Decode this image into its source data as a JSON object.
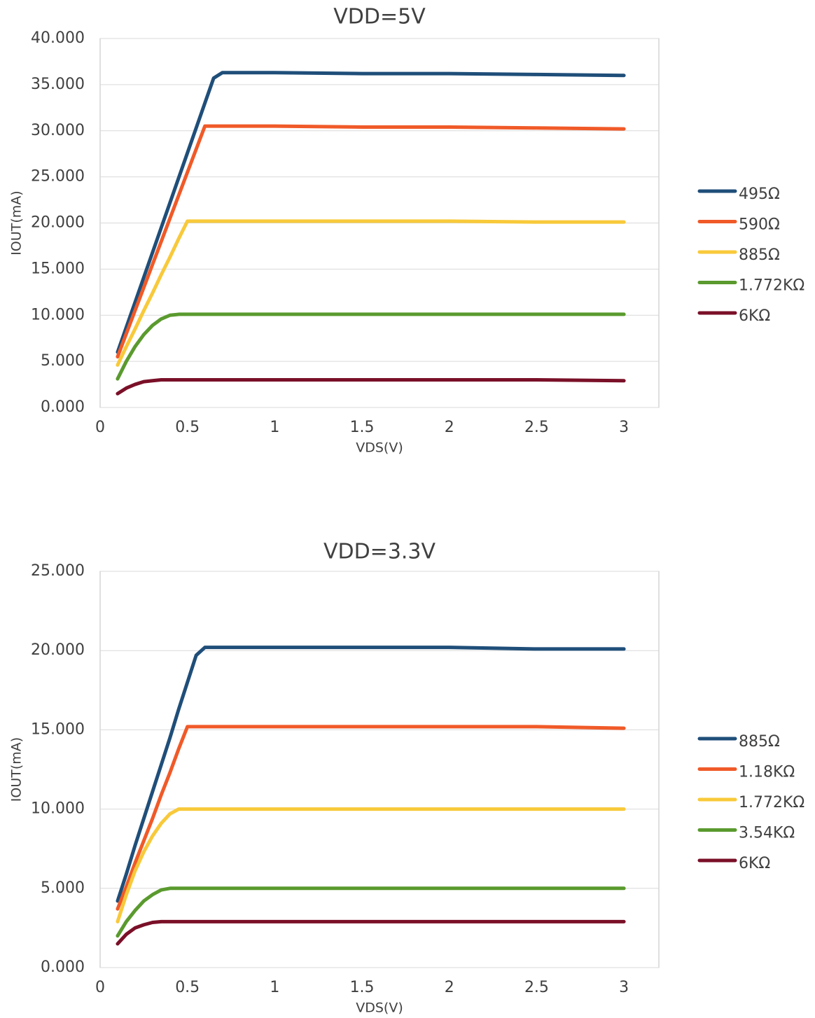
{
  "chart_data": [
    {
      "type": "line",
      "title": "VDD=5V",
      "x_label": "VDS(V)",
      "y_label": "IOUT(mA)",
      "x": [
        0.1,
        0.15,
        0.2,
        0.25,
        0.3,
        0.35,
        0.4,
        0.45,
        0.5,
        0.55,
        0.6,
        0.65,
        0.7,
        1,
        1.5,
        2,
        2.5,
        3
      ],
      "series": [
        {
          "name": "495Ω",
          "color": "#1f4e79",
          "values": [
            6,
            8.7,
            11.4,
            14.1,
            16.8,
            19.5,
            22.2,
            24.9,
            27.6,
            30.3,
            33,
            35.7,
            36.3,
            36.3,
            36.2,
            36.2,
            36.1,
            36.0
          ]
        },
        {
          "name": "590Ω",
          "color": "#f05a28",
          "values": [
            5.5,
            8,
            10.5,
            13,
            15.5,
            18,
            20.5,
            23,
            25.5,
            28,
            30.5,
            30.5,
            30.5,
            30.5,
            30.4,
            30.4,
            30.3,
            30.2
          ]
        },
        {
          "name": "885Ω",
          "color": "#f8c93a",
          "values": [
            4.6,
            6.6,
            8.5,
            10.5,
            12.4,
            14.4,
            16.3,
            18.3,
            20.2,
            20.2,
            20.2,
            20.2,
            20.2,
            20.2,
            20.2,
            20.2,
            20.1,
            20.1
          ]
        },
        {
          "name": "1.772KΩ",
          "color": "#5a9a2e",
          "values": [
            3.1,
            5,
            6.6,
            7.9,
            8.9,
            9.6,
            10.0,
            10.1,
            10.1,
            10.1,
            10.1,
            10.1,
            10.1,
            10.1,
            10.1,
            10.1,
            10.1,
            10.1
          ]
        },
        {
          "name": "6KΩ",
          "color": "#7a1028",
          "values": [
            1.5,
            2.1,
            2.5,
            2.8,
            2.9,
            3.0,
            3.0,
            3.0,
            3.0,
            3.0,
            3.0,
            3.0,
            3.0,
            3.0,
            3.0,
            3.0,
            3.0,
            2.9
          ]
        }
      ],
      "xlim": [
        0,
        3.2
      ],
      "xticks": [
        0,
        0.5,
        1,
        1.5,
        2,
        2.5,
        3
      ],
      "ylim": [
        0,
        40
      ],
      "yticks": [
        {
          "value": 0,
          "label": "0.000"
        },
        {
          "value": 5,
          "label": "5.000"
        },
        {
          "value": 10,
          "label": "10.000"
        },
        {
          "value": 15,
          "label": "15.000"
        },
        {
          "value": 20,
          "label": "20.000"
        },
        {
          "value": 25,
          "label": "25.000"
        },
        {
          "value": 30,
          "label": "30.000"
        },
        {
          "value": 35,
          "label": "35.000"
        },
        {
          "value": 40,
          "label": "40.000"
        }
      ],
      "grid": true,
      "legend": "right"
    },
    {
      "type": "line",
      "title": "VDD=3.3V",
      "x_label": "VDS(V)",
      "y_label": "IOUT(mA)",
      "x": [
        0.1,
        0.15,
        0.2,
        0.25,
        0.3,
        0.35,
        0.4,
        0.45,
        0.5,
        0.55,
        0.6,
        0.65,
        0.7,
        1,
        1.5,
        2,
        2.5,
        3
      ],
      "series": [
        {
          "name": "885Ω",
          "color": "#1f4e79",
          "values": [
            4.2,
            5.9,
            7.7,
            9.4,
            11.1,
            12.8,
            14.5,
            16.3,
            18,
            19.7,
            20.2,
            20.2,
            20.2,
            20.2,
            20.2,
            20.2,
            20.1,
            20.1
          ]
        },
        {
          "name": "1.18KΩ",
          "color": "#f05a28",
          "values": [
            3.7,
            5.1,
            6.6,
            8,
            9.4,
            10.9,
            12.3,
            13.8,
            15.2,
            15.2,
            15.2,
            15.2,
            15.2,
            15.2,
            15.2,
            15.2,
            15.2,
            15.1
          ]
        },
        {
          "name": "1.772KΩ",
          "color": "#f8c93a",
          "values": [
            2.9,
            4.6,
            6.1,
            7.3,
            8.3,
            9.1,
            9.7,
            10.0,
            10.0,
            10.0,
            10.0,
            10.0,
            10.0,
            10.0,
            10.0,
            10.0,
            10.0,
            10.0
          ]
        },
        {
          "name": "3.54KΩ",
          "color": "#5a9a2e",
          "values": [
            2.0,
            2.9,
            3.6,
            4.2,
            4.6,
            4.9,
            5.0,
            5.0,
            5.0,
            5.0,
            5.0,
            5.0,
            5.0,
            5.0,
            5.0,
            5.0,
            5.0,
            5.0
          ]
        },
        {
          "name": "6KΩ",
          "color": "#7a1028",
          "values": [
            1.5,
            2.1,
            2.5,
            2.7,
            2.85,
            2.9,
            2.9,
            2.9,
            2.9,
            2.9,
            2.9,
            2.9,
            2.9,
            2.9,
            2.9,
            2.9,
            2.9,
            2.9
          ]
        }
      ],
      "xlim": [
        0,
        3.2
      ],
      "xticks": [
        0,
        0.5,
        1,
        1.5,
        2,
        2.5,
        3
      ],
      "ylim": [
        0,
        25
      ],
      "yticks": [
        {
          "value": 0,
          "label": "0.000"
        },
        {
          "value": 5,
          "label": "5.000"
        },
        {
          "value": 10,
          "label": "10.000"
        },
        {
          "value": 15,
          "label": "15.000"
        },
        {
          "value": 20,
          "label": "20.000"
        },
        {
          "value": 25,
          "label": "25.000"
        }
      ],
      "grid": true,
      "legend": "right"
    }
  ]
}
